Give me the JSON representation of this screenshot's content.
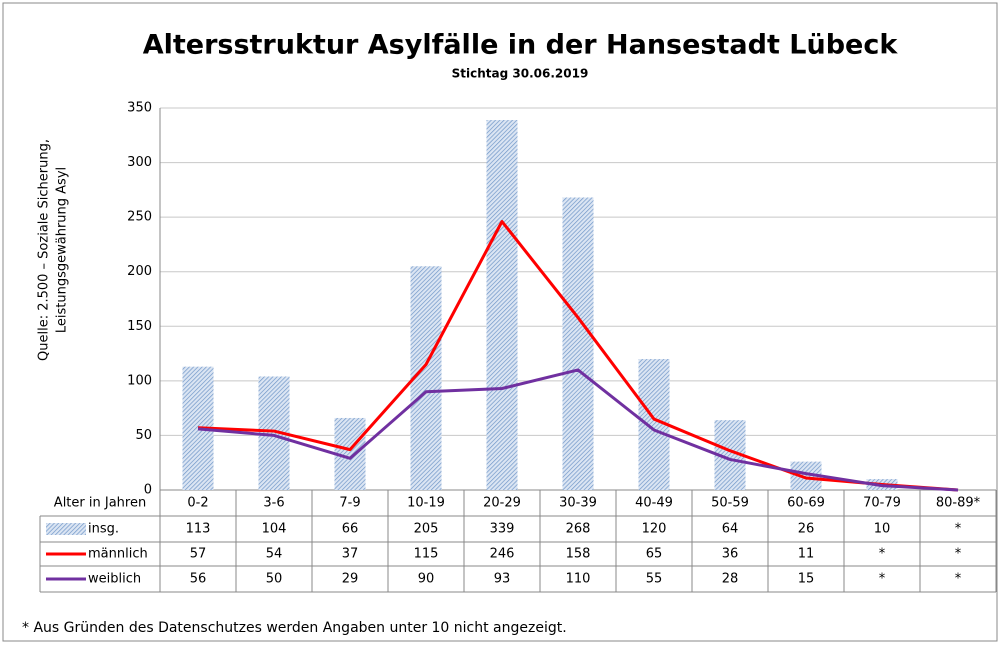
{
  "chart_data": {
    "type": "bar",
    "title": "Altersstruktur Asylfälle in der Hansestadt Lübeck",
    "subtitle": "Stichtag 30.06.2019",
    "y_label": [
      "Quelle: 2.500 – Soziale Sicherung,",
      "Leistungsgewährung Asyl"
    ],
    "x_label": "Alter in Jahren",
    "footnote": "* Aus Gründen des Datenschutzes werden Angaben unter 10 nicht angezeigt.",
    "categories": [
      "0-2",
      "3-6",
      "7-9",
      "10-19",
      "20-29",
      "30-39",
      "40-49",
      "50-59",
      "60-69",
      "70-79",
      "80-89*"
    ],
    "series": [
      {
        "name": "insg.",
        "type": "bar",
        "color": "#7aa0d0",
        "values": [
          113,
          104,
          66,
          205,
          339,
          268,
          120,
          64,
          26,
          10,
          0
        ],
        "value_labels": [
          "113",
          "104",
          "66",
          "205",
          "339",
          "268",
          "120",
          "64",
          "26",
          "10",
          "*"
        ]
      },
      {
        "name": "männlich",
        "type": "line",
        "color": "#ff0000",
        "values": [
          57,
          54,
          37,
          115,
          246,
          158,
          65,
          36,
          11,
          5,
          0
        ],
        "value_labels": [
          "57",
          "54",
          "37",
          "115",
          "246",
          "158",
          "65",
          "36",
          "11",
          "*",
          "*"
        ]
      },
      {
        "name": "weiblich",
        "type": "line",
        "color": "#7030a0",
        "values": [
          56,
          50,
          29,
          90,
          93,
          110,
          55,
          28,
          15,
          4,
          0
        ],
        "value_labels": [
          "56",
          "50",
          "29",
          "90",
          "93",
          "110",
          "55",
          "28",
          "15",
          "*",
          "*"
        ]
      }
    ],
    "ylim": [
      0,
      350
    ],
    "yticks": [
      0,
      50,
      100,
      150,
      200,
      250,
      300,
      350
    ],
    "grid": true
  }
}
